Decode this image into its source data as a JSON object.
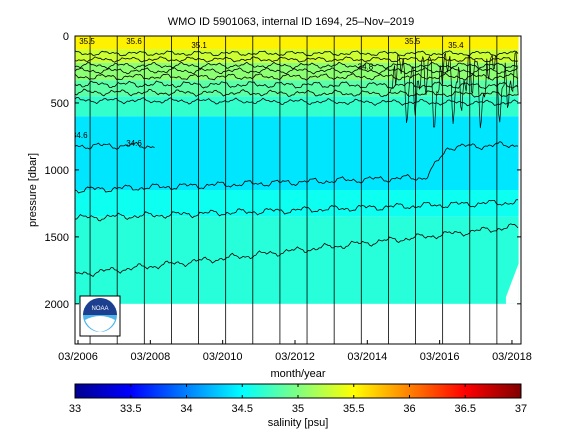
{
  "chart_data": {
    "type": "heatmap",
    "title": "WMO ID 5901063, internal ID 1694, 25–Nov–2019",
    "xlabel": "month/year",
    "ylabel": "pressure [dbar]",
    "colorbar_label": "salinity [psu]",
    "x_range": [
      "2006-02",
      "2018-06"
    ],
    "x_ticks": [
      "03/2006",
      "03/2008",
      "03/2010",
      "03/2012",
      "03/2014",
      "03/2016",
      "03/2018"
    ],
    "y_range": [
      0,
      2300
    ],
    "y_reversed": true,
    "y_ticks": [
      0,
      500,
      1000,
      1500,
      2000
    ],
    "colorbar_range": [
      33,
      37
    ],
    "colorbar_ticks": [
      "33",
      "33.5",
      "34",
      "34.5",
      "35",
      "35.5",
      "36",
      "36.5",
      "37"
    ],
    "colormap": [
      "#00008f",
      "#0000ff",
      "#0080ff",
      "#00ffff",
      "#80ff80",
      "#ffff00",
      "#ff8000",
      "#ff0000",
      "#800000"
    ],
    "vertical_lines_year_fraction": [
      2006.5,
      2007.25,
      2008.0,
      2008.75,
      2009.5,
      2010.25,
      2011.0,
      2011.75,
      2012.5,
      2013.25,
      2014.0,
      2014.75,
      2015.5,
      2016.25,
      2017.0,
      2017.75
    ],
    "salinity_layers_psu": [
      {
        "top_dbar": 0,
        "bottom_dbar": 100,
        "salinity": 35.55
      },
      {
        "top_dbar": 100,
        "bottom_dbar": 200,
        "salinity": 35.3
      },
      {
        "top_dbar": 200,
        "bottom_dbar": 330,
        "salinity": 35.05
      },
      {
        "top_dbar": 330,
        "bottom_dbar": 450,
        "salinity": 34.85
      },
      {
        "top_dbar": 450,
        "bottom_dbar": 600,
        "salinity": 34.7
      },
      {
        "top_dbar": 600,
        "bottom_dbar": 1150,
        "salinity": 34.4
      },
      {
        "top_dbar": 1150,
        "bottom_dbar": 1350,
        "salinity": 34.55
      },
      {
        "top_dbar": 1350,
        "bottom_dbar": 2000,
        "salinity": 34.65
      }
    ],
    "contour_labels": [
      "35.5",
      "35.6",
      "35.1",
      "34.6",
      "35.5",
      "35.4",
      "34.8",
      "34.6"
    ]
  }
}
